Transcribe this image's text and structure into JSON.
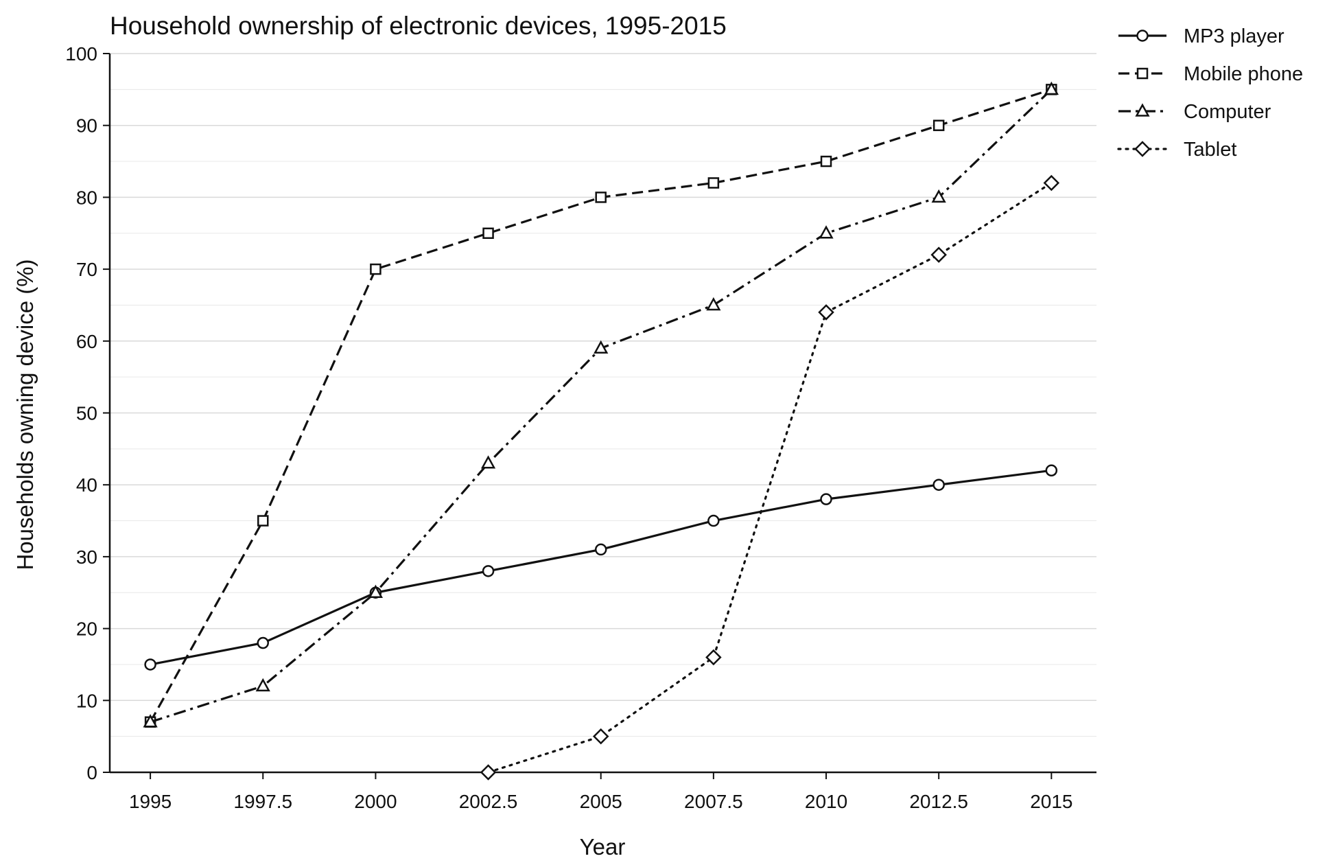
{
  "chart_data": {
    "type": "line",
    "title": "Household ownership of electronic devices, 1995-2015",
    "xlabel": "Year",
    "ylabel": "Households owning device (%)",
    "x": [
      1995,
      1997.5,
      2000,
      2002.5,
      2005,
      2007.5,
      2010,
      2012.5,
      2015
    ],
    "x_tick_labels": [
      "1995",
      "1997.5",
      "2000",
      "2002.5",
      "2005",
      "2007.5",
      "2010",
      "2012.5",
      "2015"
    ],
    "xlim": [
      1994.1,
      2016.0
    ],
    "ylim": [
      0,
      100
    ],
    "y_ticks": [
      0,
      10,
      20,
      30,
      40,
      50,
      60,
      70,
      80,
      90,
      100
    ],
    "y_tick_labels": [
      "0",
      "10",
      "20",
      "30",
      "40",
      "50",
      "60",
      "70",
      "80",
      "90",
      "100"
    ],
    "grid": "horizontal",
    "legend_position": "outside top-right",
    "line_color": "#111111",
    "grid_color": "#d9d9d9",
    "series": [
      {
        "name": "MP3 player",
        "marker": "circle",
        "dash": "solid",
        "values": [
          15,
          18,
          25,
          28,
          31,
          35,
          38,
          40,
          42
        ]
      },
      {
        "name": "Mobile phone",
        "marker": "square",
        "dash": "dashed",
        "values": [
          7,
          35,
          70,
          75,
          80,
          82,
          85,
          90,
          95
        ]
      },
      {
        "name": "Computer",
        "marker": "triangle",
        "dash": "dashdot",
        "values": [
          7,
          12,
          25,
          43,
          59,
          65,
          75,
          80,
          95
        ]
      },
      {
        "name": "Tablet",
        "marker": "diamond",
        "dash": "dotted",
        "values": [
          null,
          null,
          null,
          0,
          5,
          16,
          64,
          72,
          82
        ]
      }
    ]
  }
}
